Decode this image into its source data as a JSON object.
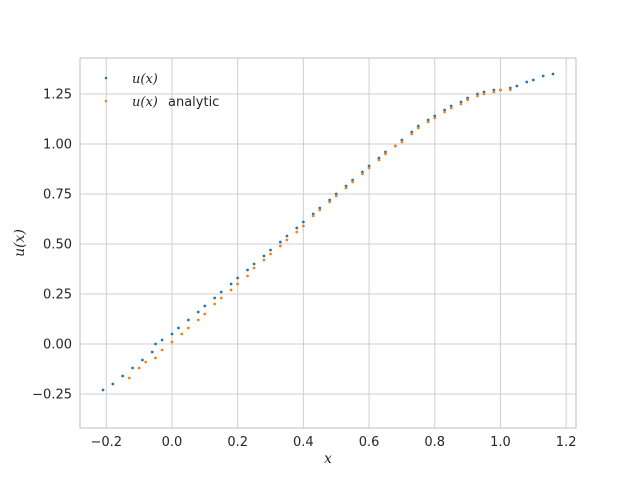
{
  "chart_data": {
    "type": "scatter",
    "title": "",
    "xlabel": "x",
    "ylabel": "u(x)",
    "xlim": [
      -0.28,
      1.23
    ],
    "ylim": [
      -0.42,
      1.43
    ],
    "xticks": [
      "−0.2",
      "0.0",
      "0.2",
      "0.4",
      "0.6",
      "0.8",
      "1.0",
      "1.2"
    ],
    "xtick_values": [
      -0.2,
      0.0,
      0.2,
      0.4,
      0.6,
      0.8,
      1.0,
      1.2
    ],
    "yticks": [
      "−0.25",
      "0.00",
      "0.25",
      "0.50",
      "0.75",
      "1.00",
      "1.25"
    ],
    "ytick_values": [
      -0.25,
      0.0,
      0.25,
      0.5,
      0.75,
      1.0,
      1.25
    ],
    "grid": true,
    "legend_position": "top-left",
    "series": [
      {
        "name": "u(x)",
        "label_math": "u(x)",
        "label_text": "",
        "color": "#1f77b4",
        "points": [
          [
            -0.21,
            -0.23
          ],
          [
            -0.18,
            -0.2
          ],
          [
            -0.15,
            -0.16
          ],
          [
            -0.12,
            -0.12
          ],
          [
            -0.09,
            -0.08
          ],
          [
            -0.06,
            -0.04
          ],
          [
            -0.05,
            0.0
          ],
          [
            -0.03,
            0.02
          ],
          [
            0.0,
            0.05
          ],
          [
            0.02,
            0.08
          ],
          [
            0.05,
            0.12
          ],
          [
            0.08,
            0.16
          ],
          [
            0.1,
            0.19
          ],
          [
            0.13,
            0.23
          ],
          [
            0.15,
            0.26
          ],
          [
            0.18,
            0.3
          ],
          [
            0.2,
            0.33
          ],
          [
            0.23,
            0.37
          ],
          [
            0.25,
            0.4
          ],
          [
            0.28,
            0.44
          ],
          [
            0.3,
            0.47
          ],
          [
            0.33,
            0.51
          ],
          [
            0.35,
            0.54
          ],
          [
            0.38,
            0.58
          ],
          [
            0.4,
            0.61
          ],
          [
            0.43,
            0.65
          ],
          [
            0.45,
            0.68
          ],
          [
            0.48,
            0.72
          ],
          [
            0.5,
            0.75
          ],
          [
            0.53,
            0.79
          ],
          [
            0.55,
            0.82
          ],
          [
            0.58,
            0.86
          ],
          [
            0.6,
            0.89
          ],
          [
            0.63,
            0.93
          ],
          [
            0.65,
            0.96
          ],
          [
            0.68,
            0.99
          ],
          [
            0.7,
            1.02
          ],
          [
            0.73,
            1.06
          ],
          [
            0.75,
            1.09
          ],
          [
            0.78,
            1.12
          ],
          [
            0.8,
            1.14
          ],
          [
            0.83,
            1.17
          ],
          [
            0.85,
            1.19
          ],
          [
            0.88,
            1.21
          ],
          [
            0.9,
            1.23
          ],
          [
            0.93,
            1.25
          ],
          [
            0.95,
            1.26
          ],
          [
            0.98,
            1.27
          ],
          [
            1.0,
            1.27
          ],
          [
            1.03,
            1.28
          ],
          [
            1.05,
            1.29
          ],
          [
            1.08,
            1.31
          ],
          [
            1.1,
            1.32
          ],
          [
            1.13,
            1.34
          ],
          [
            1.16,
            1.35
          ]
        ]
      },
      {
        "name": "u(x) analytic",
        "label_math": "u(x)",
        "label_text": "analytic",
        "color": "#ff7f0e",
        "points": [
          [
            -0.13,
            -0.17
          ],
          [
            -0.1,
            -0.12
          ],
          [
            -0.08,
            -0.09
          ],
          [
            -0.05,
            -0.07
          ],
          [
            -0.03,
            -0.03
          ],
          [
            0.0,
            0.01
          ],
          [
            0.03,
            0.05
          ],
          [
            0.05,
            0.08
          ],
          [
            0.08,
            0.12
          ],
          [
            0.1,
            0.15
          ],
          [
            0.13,
            0.2
          ],
          [
            0.15,
            0.23
          ],
          [
            0.18,
            0.27
          ],
          [
            0.2,
            0.3
          ],
          [
            0.23,
            0.34
          ],
          [
            0.25,
            0.38
          ],
          [
            0.28,
            0.42
          ],
          [
            0.3,
            0.45
          ],
          [
            0.33,
            0.49
          ],
          [
            0.35,
            0.52
          ],
          [
            0.38,
            0.56
          ],
          [
            0.4,
            0.59
          ],
          [
            0.43,
            0.64
          ],
          [
            0.45,
            0.67
          ],
          [
            0.48,
            0.71
          ],
          [
            0.5,
            0.74
          ],
          [
            0.53,
            0.78
          ],
          [
            0.55,
            0.81
          ],
          [
            0.58,
            0.85
          ],
          [
            0.6,
            0.88
          ],
          [
            0.63,
            0.92
          ],
          [
            0.65,
            0.95
          ],
          [
            0.68,
            0.99
          ],
          [
            0.7,
            1.01
          ],
          [
            0.73,
            1.05
          ],
          [
            0.75,
            1.08
          ],
          [
            0.78,
            1.11
          ],
          [
            0.8,
            1.13
          ],
          [
            0.83,
            1.16
          ],
          [
            0.85,
            1.18
          ],
          [
            0.88,
            1.2
          ],
          [
            0.9,
            1.22
          ],
          [
            0.93,
            1.24
          ],
          [
            0.95,
            1.25
          ],
          [
            0.98,
            1.26
          ],
          [
            1.0,
            1.27
          ],
          [
            1.03,
            1.27
          ]
        ]
      }
    ]
  }
}
